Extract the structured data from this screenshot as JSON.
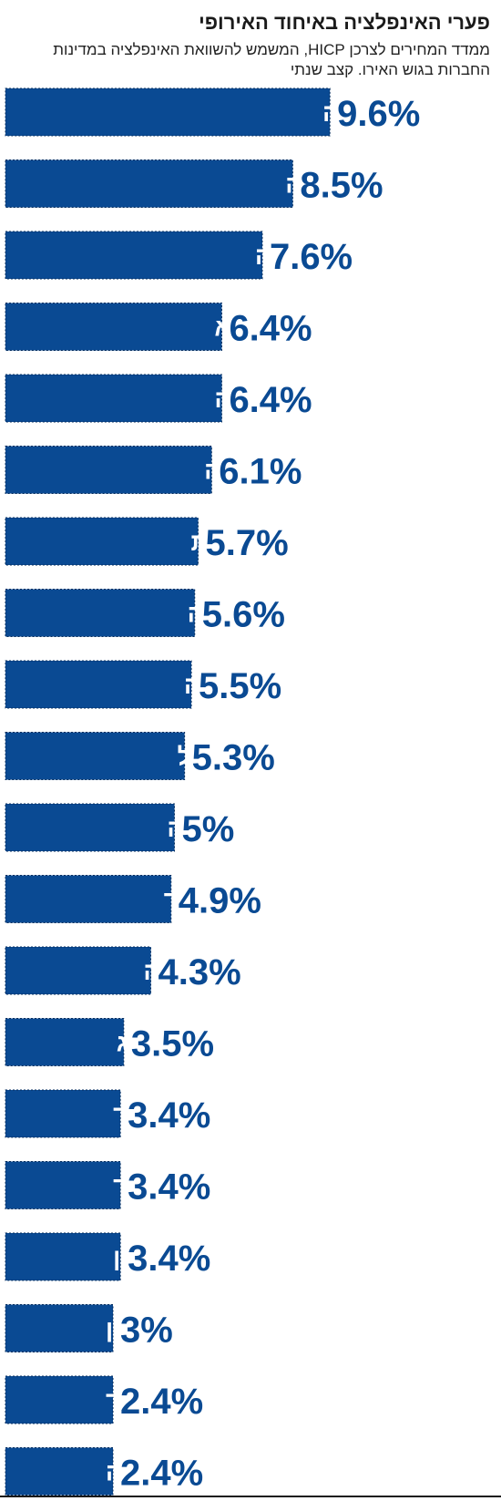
{
  "chart_data": {
    "type": "bar",
    "orientation": "horizontal",
    "title": "פערי האינפלציה באיחוד האירופי",
    "subtitle": "ממדד המחירים לצרכן HICP, המשמש להשוואת האינפלציה במדינות החברות בגוש האירו. קצב שנתי",
    "categories": [
      "סלובקיה",
      "קרואטיה",
      "אוסטריה",
      "ליטא",
      "גרמניה",
      "סלובניה",
      "צרפת",
      "לטביה",
      "איטליה",
      "פורטוגל",
      "מלטה",
      "אירלנד",
      "אסטוניה",
      "לוקסמבורג",
      "הולנד",
      "פינלנד",
      "יוון",
      "קפריסין",
      "ספרד",
      "בלגיה"
    ],
    "values": [
      9.6,
      8.5,
      7.6,
      6.4,
      6.4,
      6.1,
      5.7,
      5.6,
      5.5,
      5.3,
      5,
      4.9,
      4.3,
      3.5,
      3.4,
      3.4,
      3.4,
      3,
      2.4,
      2.4
    ],
    "value_labels": [
      "9.6%",
      "8.5%",
      "7.6%",
      "6.4%",
      "6.4%",
      "6.1%",
      "5.7%",
      "5.6%",
      "5.5%",
      "5.3%",
      "5%",
      "4.9%",
      "4.3%",
      "3.5%",
      "3.4%",
      "3.4%",
      "3.4%",
      "3%",
      "2.4%",
      "2.4%"
    ],
    "bar_color": "#0a4a93",
    "label_color": "#ffffff",
    "value_color": "#0a4a93",
    "grid": false,
    "legend": "none"
  }
}
